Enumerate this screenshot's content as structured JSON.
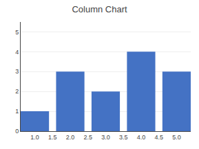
{
  "chart_data": {
    "type": "bar",
    "title": "Column Chart",
    "x": [
      1.0,
      2.0,
      3.0,
      4.0,
      5.0
    ],
    "values": [
      1,
      3,
      2,
      4,
      3
    ],
    "color": "#4472C4",
    "xlim": [
      0.6,
      5.4
    ],
    "xticks": [
      {
        "value": 1.0,
        "label": "1.0"
      },
      {
        "value": 1.5,
        "label": "1.5"
      },
      {
        "value": 2.0,
        "label": "2.0"
      },
      {
        "value": 2.5,
        "label": "2.5"
      },
      {
        "value": 3.0,
        "label": "3.0"
      },
      {
        "value": 3.5,
        "label": "3.5"
      },
      {
        "value": 4.0,
        "label": "4.0"
      },
      {
        "value": 4.5,
        "label": "4.5"
      },
      {
        "value": 5.0,
        "label": "5.0"
      }
    ],
    "ylim": [
      0,
      5.5
    ],
    "yticks": [
      0,
      1,
      2,
      3,
      4,
      5
    ],
    "grid": true
  }
}
